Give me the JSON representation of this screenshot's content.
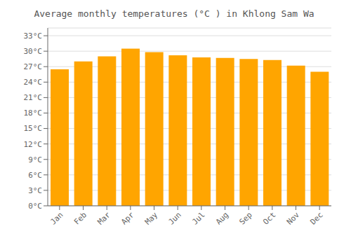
{
  "chart_data": {
    "type": "bar",
    "title": "Average monthly temperatures (°C ) in Khlong Sam Wa",
    "categories": [
      "Jan",
      "Feb",
      "Mar",
      "Apr",
      "May",
      "Jun",
      "Jul",
      "Aug",
      "Sep",
      "Oct",
      "Nov",
      "Dec"
    ],
    "values": [
      26.5,
      28.0,
      29.0,
      30.5,
      29.8,
      29.2,
      28.8,
      28.7,
      28.5,
      28.3,
      27.2,
      26.0
    ],
    "color": "#FFA500",
    "ylim": [
      0,
      34.5
    ],
    "yticks": [
      {
        "value": 0,
        "label": "0°C"
      },
      {
        "value": 3,
        "label": "3°C"
      },
      {
        "value": 6,
        "label": "6°C"
      },
      {
        "value": 9,
        "label": "9°C"
      },
      {
        "value": 12,
        "label": "12°C"
      },
      {
        "value": 15,
        "label": "15°C"
      },
      {
        "value": 18,
        "label": "18°C"
      },
      {
        "value": 21,
        "label": "21°C"
      },
      {
        "value": 24,
        "label": "24°C"
      },
      {
        "value": 27,
        "label": "27°C"
      },
      {
        "value": 30,
        "label": "30°C"
      },
      {
        "value": 33,
        "label": "33°C"
      }
    ],
    "grid": true
  }
}
